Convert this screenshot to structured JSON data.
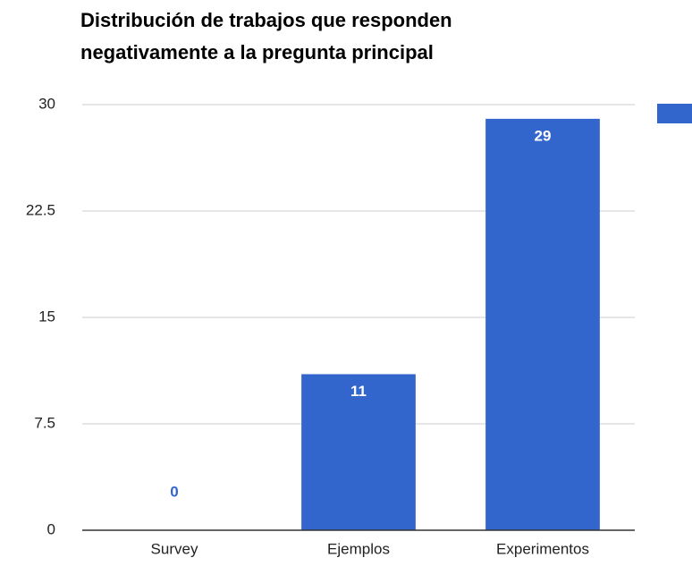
{
  "chart_data": {
    "type": "bar",
    "title": [
      "Distribución de trabajos que responden",
      "negativamente a la pregunta principal"
    ],
    "categories": [
      "Survey",
      "Ejemplos",
      "Experimentos"
    ],
    "values": [
      0,
      11,
      29
    ],
    "color": "#3366cc",
    "ylim": [
      0,
      30
    ],
    "yticks": [
      0,
      7.5,
      15,
      22.5,
      30
    ],
    "grid": true
  }
}
